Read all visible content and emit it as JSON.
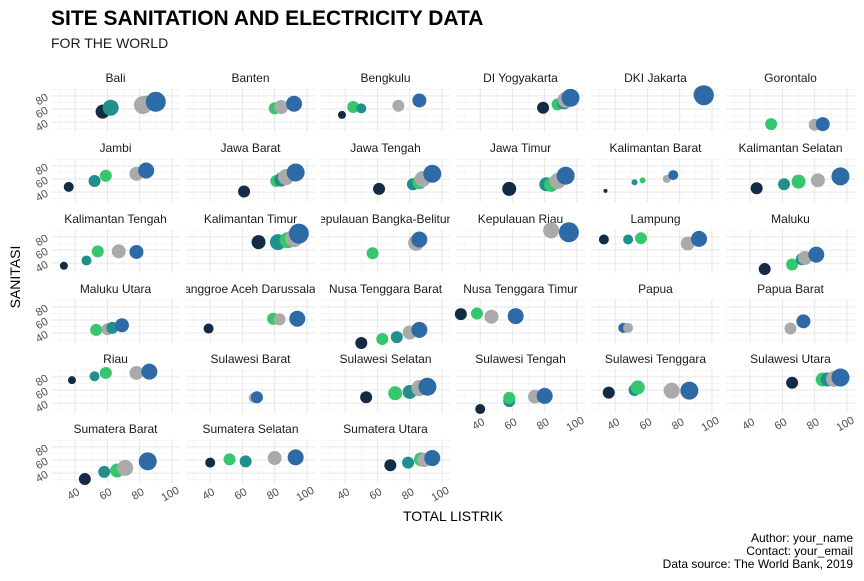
{
  "chart_data": {
    "type": "scatter",
    "title": "SITE SANITATION AND ELECTRICITY DATA",
    "subtitle": "FOR THE WORLD",
    "xlabel": "TOTAL LISTRIK",
    "ylabel": "SANITASI",
    "xlim": [
      25,
      105
    ],
    "ylim": [
      25,
      92
    ],
    "xticks": [
      "40",
      "60",
      "80",
      "100"
    ],
    "yticks": [
      "40",
      "60",
      "80"
    ],
    "grid": true,
    "legend": "none",
    "caption": [
      "Author: your_name",
      "Contact: your_email",
      "Data source: The World Bank, 2019"
    ],
    "colors": {
      "c1": "#132b43",
      "c2": "#21908c",
      "c3": "#35c66e",
      "c4": "#aaaaaa",
      "c5": "#2d6aa6"
    },
    "facets": [
      {
        "name": "Bali",
        "points": [
          [
            57,
            56,
            1,
            7
          ],
          [
            62,
            62,
            2,
            8
          ],
          [
            84,
            68,
            3,
            8
          ],
          [
            82,
            66,
            4,
            9
          ],
          [
            90,
            71,
            5,
            10
          ]
        ]
      },
      {
        "name": "Banten",
        "points": [
          [
            80,
            61,
            3,
            6
          ],
          [
            84,
            63,
            4,
            7
          ],
          [
            92,
            68,
            5,
            8
          ]
        ]
      },
      {
        "name": "Bengkulu",
        "points": [
          [
            38,
            51,
            1,
            4
          ],
          [
            45,
            63,
            3,
            6
          ],
          [
            50,
            61,
            2,
            5
          ],
          [
            73,
            65,
            4,
            6
          ],
          [
            86,
            73,
            5,
            7
          ]
        ]
      },
      {
        "name": "DI Yogyakarta",
        "points": [
          [
            79,
            62,
            1,
            6
          ],
          [
            88,
            67,
            3,
            6
          ],
          [
            92,
            70,
            2,
            7
          ],
          [
            93,
            74,
            4,
            8
          ],
          [
            96,
            77,
            5,
            9
          ]
        ]
      },
      {
        "name": "DKI Jakarta",
        "points": [
          [
            94,
            82,
            4,
            9
          ],
          [
            95,
            81,
            5,
            10
          ]
        ]
      },
      {
        "name": "Gorontalo",
        "points": [
          [
            53,
            37,
            3,
            6
          ],
          [
            80,
            36,
            4,
            6
          ],
          [
            85,
            37,
            5,
            7
          ]
        ]
      },
      {
        "name": "Jambi",
        "points": [
          [
            36,
            48,
            1,
            5
          ],
          [
            52,
            57,
            2,
            6
          ],
          [
            59,
            65,
            3,
            6
          ],
          [
            78,
            68,
            4,
            7
          ],
          [
            84,
            73,
            5,
            8
          ]
        ]
      },
      {
        "name": "Jawa Barat",
        "points": [
          [
            61,
            41,
            1,
            6
          ],
          [
            81,
            57,
            3,
            6
          ],
          [
            84,
            59,
            2,
            7
          ],
          [
            87,
            63,
            4,
            8
          ],
          [
            93,
            70,
            5,
            9
          ]
        ]
      },
      {
        "name": "Jawa Tengah",
        "points": [
          [
            61,
            45,
            1,
            6
          ],
          [
            82,
            52,
            2,
            6
          ],
          [
            86,
            55,
            3,
            7
          ],
          [
            88,
            60,
            4,
            8
          ],
          [
            94,
            68,
            5,
            9
          ]
        ]
      },
      {
        "name": "Jawa Timur",
        "points": [
          [
            58,
            45,
            1,
            7
          ],
          [
            81,
            52,
            2,
            7
          ],
          [
            84,
            51,
            3,
            7
          ],
          [
            88,
            57,
            4,
            8
          ],
          [
            93,
            65,
            5,
            9
          ]
        ]
      },
      {
        "name": "Kalimantan Barat",
        "points": [
          [
            34,
            42,
            1,
            2
          ],
          [
            52,
            55,
            2,
            3
          ],
          [
            57,
            58,
            3,
            3
          ],
          [
            72,
            60,
            4,
            4
          ],
          [
            76,
            66,
            5,
            5
          ]
        ]
      },
      {
        "name": "Kalimantan Selatan",
        "points": [
          [
            44,
            46,
            1,
            6
          ],
          [
            61,
            52,
            2,
            6
          ],
          [
            70,
            56,
            3,
            7
          ],
          [
            82,
            58,
            4,
            7
          ],
          [
            96,
            64,
            5,
            9
          ]
        ]
      },
      {
        "name": "Kalimantan Tengah",
        "points": [
          [
            33,
            36,
            1,
            4
          ],
          [
            47,
            44,
            2,
            5
          ],
          [
            54,
            58,
            3,
            6
          ],
          [
            67,
            58,
            4,
            7
          ],
          [
            78,
            57,
            5,
            7
          ]
        ]
      },
      {
        "name": "Kalimantan Timur",
        "points": [
          [
            70,
            72,
            1,
            7
          ],
          [
            82,
            72,
            2,
            8
          ],
          [
            88,
            75,
            3,
            8
          ],
          [
            92,
            78,
            4,
            9
          ],
          [
            95,
            85,
            5,
            10
          ]
        ]
      },
      {
        "name": "Kepulauan Bangka-Belitung",
        "points": [
          [
            57,
            55,
            3,
            6
          ],
          [
            84,
            71,
            4,
            8
          ],
          [
            86,
            76,
            5,
            8
          ]
        ]
      },
      {
        "name": "Kepulauan Riau",
        "points": [
          [
            84,
            90,
            4,
            8
          ],
          [
            95,
            87,
            5,
            10
          ]
        ]
      },
      {
        "name": "Lampung",
        "points": [
          [
            33,
            76,
            1,
            5
          ],
          [
            48,
            76,
            2,
            5
          ],
          [
            56,
            78,
            3,
            6
          ],
          [
            85,
            70,
            4,
            7
          ],
          [
            92,
            77,
            5,
            8
          ]
        ]
      },
      {
        "name": "Maluku",
        "points": [
          [
            49,
            31,
            1,
            6
          ],
          [
            66,
            38,
            3,
            6
          ],
          [
            72,
            46,
            2,
            6
          ],
          [
            74,
            48,
            4,
            7
          ],
          [
            81,
            53,
            5,
            8
          ]
        ]
      },
      {
        "name": "Maluku Utara",
        "points": [
          [
            53,
            45,
            3,
            6
          ],
          [
            60,
            46,
            4,
            6
          ],
          [
            63,
            48,
            2,
            6
          ],
          [
            69,
            52,
            5,
            7
          ]
        ]
      },
      {
        "name": "Nanggroe Aceh Darussalam",
        "points": [
          [
            39,
            47,
            1,
            5
          ],
          [
            79,
            62,
            3,
            6
          ],
          [
            83,
            61,
            4,
            6
          ],
          [
            94,
            62,
            5,
            8
          ]
        ]
      },
      {
        "name": "Nusa Tenggara Barat",
        "points": [
          [
            50,
            25,
            1,
            6
          ],
          [
            63,
            31,
            3,
            6
          ],
          [
            72,
            34,
            2,
            6
          ],
          [
            80,
            41,
            4,
            7
          ],
          [
            86,
            45,
            5,
            8
          ]
        ]
      },
      {
        "name": "Nusa Tenggara Timur",
        "points": [
          [
            28,
            69,
            1,
            6
          ],
          [
            38,
            70,
            3,
            6
          ],
          [
            47,
            65,
            4,
            7
          ],
          [
            62,
            66,
            5,
            8
          ]
        ]
      },
      {
        "name": "Papua",
        "points": [
          [
            45,
            48,
            5,
            5
          ],
          [
            48,
            48,
            4,
            5
          ]
        ]
      },
      {
        "name": "Papua Barat",
        "points": [
          [
            65,
            47,
            4,
            6
          ],
          [
            73,
            58,
            5,
            7
          ]
        ]
      },
      {
        "name": "Riau",
        "points": [
          [
            38,
            75,
            1,
            4
          ],
          [
            52,
            81,
            2,
            5
          ],
          [
            59,
            86,
            3,
            6
          ],
          [
            78,
            86,
            4,
            7
          ],
          [
            86,
            88,
            5,
            8
          ]
        ]
      },
      {
        "name": "Sulawesi Barat",
        "points": [
          [
            67,
            48,
            4,
            5
          ],
          [
            69,
            49,
            5,
            6
          ]
        ]
      },
      {
        "name": "Sulawesi Selatan",
        "points": [
          [
            53,
            49,
            1,
            6
          ],
          [
            71,
            55,
            3,
            7
          ],
          [
            80,
            57,
            2,
            7
          ],
          [
            86,
            63,
            4,
            8
          ],
          [
            91,
            65,
            5,
            9
          ]
        ]
      },
      {
        "name": "Sulawesi Tengah",
        "points": [
          [
            40,
            31,
            1,
            5
          ],
          [
            58,
            43,
            2,
            6
          ],
          [
            58,
            48,
            3,
            6
          ],
          [
            74,
            50,
            4,
            7
          ],
          [
            80,
            51,
            5,
            8
          ]
        ]
      },
      {
        "name": "Sulawesi Tenggara",
        "points": [
          [
            36,
            56,
            1,
            6
          ],
          [
            52,
            60,
            2,
            6
          ],
          [
            54,
            64,
            3,
            7
          ],
          [
            75,
            59,
            4,
            8
          ],
          [
            86,
            59,
            5,
            9
          ]
        ]
      },
      {
        "name": "Sulawesi Utara",
        "points": [
          [
            66,
            71,
            1,
            6
          ],
          [
            85,
            76,
            3,
            7
          ],
          [
            88,
            76,
            2,
            7
          ],
          [
            92,
            77,
            4,
            8
          ],
          [
            96,
            79,
            5,
            9
          ]
        ]
      },
      {
        "name": "Sumatera Barat",
        "points": [
          [
            46,
            31,
            1,
            6
          ],
          [
            58,
            42,
            2,
            6
          ],
          [
            66,
            44,
            3,
            7
          ],
          [
            71,
            48,
            4,
            8
          ],
          [
            85,
            58,
            5,
            9
          ]
        ]
      },
      {
        "name": "Sumatera Selatan",
        "points": [
          [
            40,
            56,
            1,
            5
          ],
          [
            52,
            61,
            3,
            6
          ],
          [
            62,
            58,
            2,
            6
          ],
          [
            80,
            63,
            4,
            7
          ],
          [
            93,
            64,
            5,
            8
          ]
        ]
      },
      {
        "name": "Sumatera Utara",
        "points": [
          [
            68,
            52,
            1,
            6
          ],
          [
            79,
            56,
            2,
            6
          ],
          [
            87,
            61,
            3,
            7
          ],
          [
            89,
            60,
            4,
            7
          ],
          [
            94,
            63,
            5,
            8
          ]
        ]
      }
    ]
  }
}
